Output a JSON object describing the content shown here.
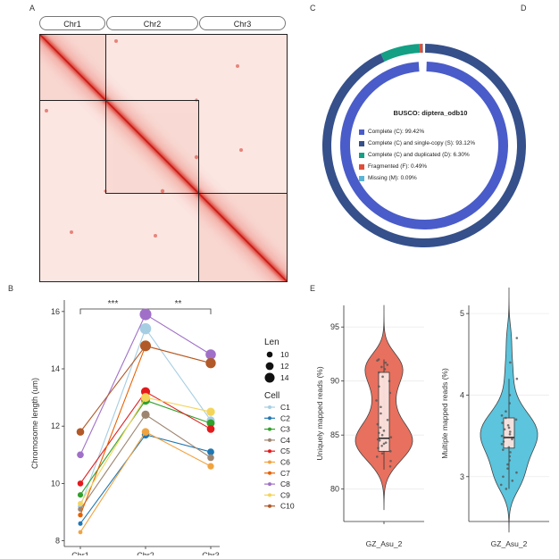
{
  "labels": {
    "A": "A",
    "B": "B",
    "C": "C",
    "D": "D",
    "E": "E"
  },
  "hic": {
    "chromosomes": [
      "Chr1",
      "Chr2",
      "Chr3"
    ],
    "colors": {
      "background": "#fbe9e6",
      "diagonal": "#d8281e",
      "box": "#222222"
    }
  },
  "busco": {
    "title": "BUSCO: diptera_odb10",
    "legend": [
      {
        "label": "Complete (C): 99.42%",
        "color": "#4a5cc9"
      },
      {
        "label": "Complete (C) and single-copy (S): 93.12%",
        "color": "#35508a"
      },
      {
        "label": "Complete (C) and duplicated (D): 6.30%",
        "color": "#13a085"
      },
      {
        "label": "Fragmented (F): 0.49%",
        "color": "#e04e39"
      },
      {
        "label": "Missing (M): 0.09%",
        "color": "#5ab4d6"
      }
    ]
  },
  "chart_data": [
    {
      "type": "line",
      "ylabel": "Chromosome length (um)",
      "categories": [
        "Chr1",
        "Chr2",
        "Chr3"
      ],
      "ylim": [
        7.8,
        16.4
      ],
      "yticks": [
        "8",
        "10",
        "12",
        "14",
        "16"
      ],
      "significance": [
        {
          "from": "Chr1",
          "to": "Chr2",
          "label": "***"
        },
        {
          "from": "Chr2",
          "to": "Chr3",
          "label": "**"
        }
      ],
      "size_legend": {
        "title": "Len",
        "values": [
          "10",
          "12",
          "14"
        ]
      },
      "color_legend_title": "Cell",
      "series": [
        {
          "name": "C1",
          "color": "#a6cee3",
          "values": [
            9.2,
            15.4,
            12.2
          ]
        },
        {
          "name": "C2",
          "color": "#1f78b4",
          "values": [
            8.6,
            11.7,
            11.1
          ]
        },
        {
          "name": "C3",
          "color": "#33a02c",
          "values": [
            9.6,
            12.9,
            12.1
          ]
        },
        {
          "name": "C4",
          "color": "#9d8570",
          "values": [
            9.1,
            12.4,
            10.9
          ]
        },
        {
          "name": "C5",
          "color": "#e31a1c",
          "values": [
            10.0,
            13.2,
            11.9
          ]
        },
        {
          "name": "C6",
          "color": "#f1a340",
          "values": [
            8.3,
            11.8,
            10.6
          ]
        },
        {
          "name": "C7",
          "color": "#e66101",
          "values": [
            8.9,
            14.8,
            14.2
          ]
        },
        {
          "name": "C8",
          "color": "#a070c8",
          "values": [
            11.0,
            15.9,
            14.5
          ]
        },
        {
          "name": "C9",
          "color": "#f5d45a",
          "values": [
            9.3,
            13.0,
            12.5
          ]
        },
        {
          "name": "C10",
          "color": "#b15928",
          "values": [
            11.8,
            14.8,
            14.2
          ]
        }
      ]
    },
    {
      "type": "violin",
      "ylabel": "Uniquely mapped reads (%)",
      "xlabel": "GZ_Asu_2",
      "ylim": [
        77,
        97
      ],
      "yticks": [
        "80",
        "85",
        "90",
        "95"
      ],
      "color": "#e8705e",
      "box": {
        "q1": 83.5,
        "median": 84.7,
        "q3": 90.8,
        "whisker_low": 81.8,
        "whisker_high": 92.0
      },
      "points": [
        82.1,
        82.6,
        83.0,
        83.3,
        83.5,
        83.8,
        84.0,
        84.2,
        84.3,
        84.5,
        84.6,
        84.8,
        85.0,
        85.2,
        85.4,
        85.7,
        86.0,
        86.4,
        87.0,
        87.6,
        88.2,
        88.9,
        89.5,
        90.0,
        90.4,
        90.8,
        91.1,
        91.3,
        91.5,
        91.7,
        91.9,
        92.0
      ]
    },
    {
      "type": "violin",
      "ylabel": "Multiple mapped reads (%)",
      "xlabel": "GZ_Asu_2",
      "ylim": [
        2.45,
        5.1
      ],
      "yticks": [
        "3",
        "4",
        "5"
      ],
      "color": "#5cc4dc",
      "box": {
        "q1": 3.35,
        "median": 3.48,
        "q3": 3.72,
        "whisker_low": 2.85,
        "whisker_high": 4.2
      },
      "points": [
        2.85,
        2.9,
        2.95,
        3.0,
        3.05,
        3.1,
        3.15,
        3.2,
        3.25,
        3.3,
        3.33,
        3.36,
        3.4,
        3.43,
        3.46,
        3.48,
        3.5,
        3.52,
        3.55,
        3.58,
        3.6,
        3.63,
        3.66,
        3.7,
        3.72,
        3.75,
        3.8,
        3.9,
        4.0,
        4.2,
        4.4,
        4.7
      ]
    }
  ]
}
